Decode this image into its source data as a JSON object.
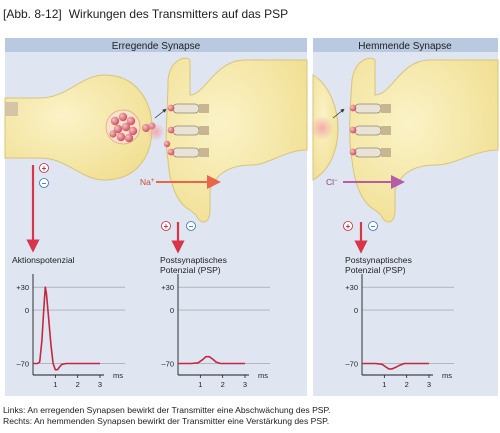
{
  "figure": {
    "number": "[Abb. 8-12]",
    "title": "Wirkungen des Transmitters auf das PSP"
  },
  "panels": {
    "left_title": "Erregende Synapse",
    "right_title": "Hemmende Synapse"
  },
  "labels": {
    "plus": "+",
    "minus": "−",
    "na_ion": "Na",
    "na_charge": "+",
    "cl_ion": "Cl",
    "cl_charge": "−",
    "ap_label": "Aktionspotenzial",
    "psp_label_1": "Postsynaptisches",
    "psp_label_2": "Potenzial (PSP)",
    "psp_label_right_1": "Postsynaptisches",
    "psp_label_right_2": "Potenzial (PSP)"
  },
  "chart_data": [
    {
      "type": "line",
      "title": "Aktionspotenzial",
      "xlabel": "ms",
      "ylabel": "",
      "x_ticks": [
        "1",
        "2",
        "3"
      ],
      "y_ticks": [
        "+30",
        "0",
        "–70"
      ],
      "xlim": [
        0,
        3
      ],
      "ylim": [
        -85,
        42
      ],
      "series": [
        {
          "x": [
            0,
            0.2,
            0.3,
            0.4,
            0.5,
            0.55,
            0.6,
            0.7,
            0.8,
            0.9,
            1.0,
            1.1,
            1.2,
            1.3,
            1.5,
            1.8,
            2.2,
            2.5,
            3.0
          ],
          "y": [
            -70,
            -70,
            -68,
            -40,
            10,
            30,
            22,
            -10,
            -45,
            -70,
            -78,
            -78,
            -74,
            -71,
            -70,
            -70,
            -70,
            -70,
            -70
          ]
        }
      ]
    },
    {
      "type": "line",
      "title": "Postsynaptisches Potenzial (PSP)",
      "xlabel": "ms",
      "ylabel": "",
      "x_ticks": [
        "1",
        "2",
        "3"
      ],
      "y_ticks": [
        "+30",
        "0",
        "–70"
      ],
      "xlim": [
        0,
        3
      ],
      "ylim": [
        -85,
        42
      ],
      "series": [
        {
          "x": [
            0,
            0.6,
            0.9,
            1.1,
            1.25,
            1.4,
            1.55,
            1.7,
            1.9,
            2.2,
            2.5,
            3.0
          ],
          "y": [
            -70,
            -70,
            -69,
            -65,
            -61,
            -61,
            -64,
            -68,
            -70,
            -70,
            -70,
            -70
          ]
        }
      ]
    },
    {
      "type": "line",
      "title": "Postsynaptisches Potenzial (PSP)",
      "xlabel": "ms",
      "ylabel": "",
      "x_ticks": [
        "1",
        "2",
        "3"
      ],
      "y_ticks": [
        "+30",
        "0",
        "–70"
      ],
      "xlim": [
        0,
        3
      ],
      "ylim": [
        -85,
        42
      ],
      "series": [
        {
          "x": [
            0,
            0.6,
            0.9,
            1.05,
            1.2,
            1.35,
            1.5,
            1.7,
            1.9,
            2.2,
            2.5,
            3.0
          ],
          "y": [
            -70,
            -70,
            -71,
            -74,
            -77,
            -77,
            -75,
            -72,
            -70,
            -70,
            -70,
            -70
          ]
        }
      ]
    }
  ],
  "captions": {
    "line1": "Links: An erregenden Synapsen bewirkt der Transmitter eine Abschwächung des PSP.",
    "line2": "Rechts: An hemmenden Synapsen bewirkt der Transmitter eine Verstärkung des PSP."
  },
  "colors": {
    "panel_bg": "#dfe6f2",
    "header_bg": "#b9c9df",
    "membrane": "#f6e8a8",
    "membrane_edge": "#d9c37b",
    "arrow_red": "#d8354a",
    "curve": "#c4283f",
    "ion_arrow_na": "#e8664a",
    "ion_arrow_cl": "#b65da3",
    "grid": "#9a9a9a"
  }
}
